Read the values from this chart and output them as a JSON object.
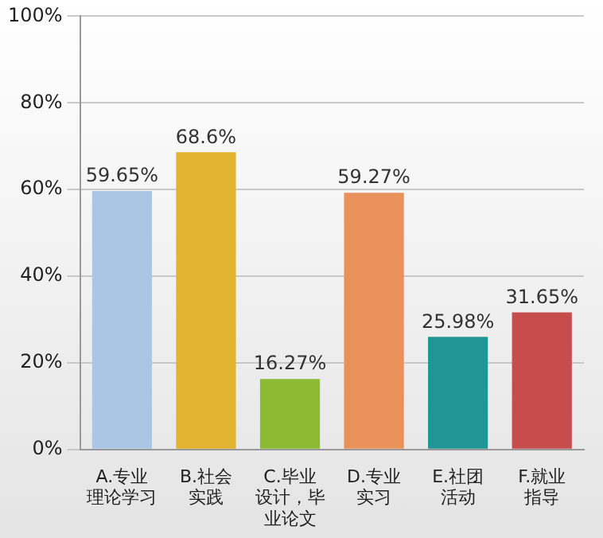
{
  "chart_data": {
    "type": "bar",
    "categories": [
      "A.专业理论学习",
      "B.社会实践",
      "C.毕业设计，毕业论文",
      "D.专业实习",
      "E.社团活动",
      "F.就业指导"
    ],
    "values": [
      59.65,
      68.6,
      16.27,
      59.27,
      25.98,
      31.65
    ],
    "value_labels": [
      "59.65%",
      "68.6%",
      "16.27%",
      "59.27%",
      "25.98%",
      "31.65%"
    ],
    "colors": [
      "#a9c6e4",
      "#e2b431",
      "#8dba33",
      "#e8915a",
      "#1f9595",
      "#c74c4c"
    ],
    "ylim": [
      0,
      100
    ],
    "yticks": [
      {
        "value": 0,
        "label": "0%"
      },
      {
        "value": 20,
        "label": "20%"
      },
      {
        "value": 40,
        "label": "40%"
      },
      {
        "value": 60,
        "label": "60%"
      },
      {
        "value": 80,
        "label": "80%"
      },
      {
        "value": 100,
        "label": "100%"
      }
    ],
    "grid": "y",
    "legend": false
  }
}
